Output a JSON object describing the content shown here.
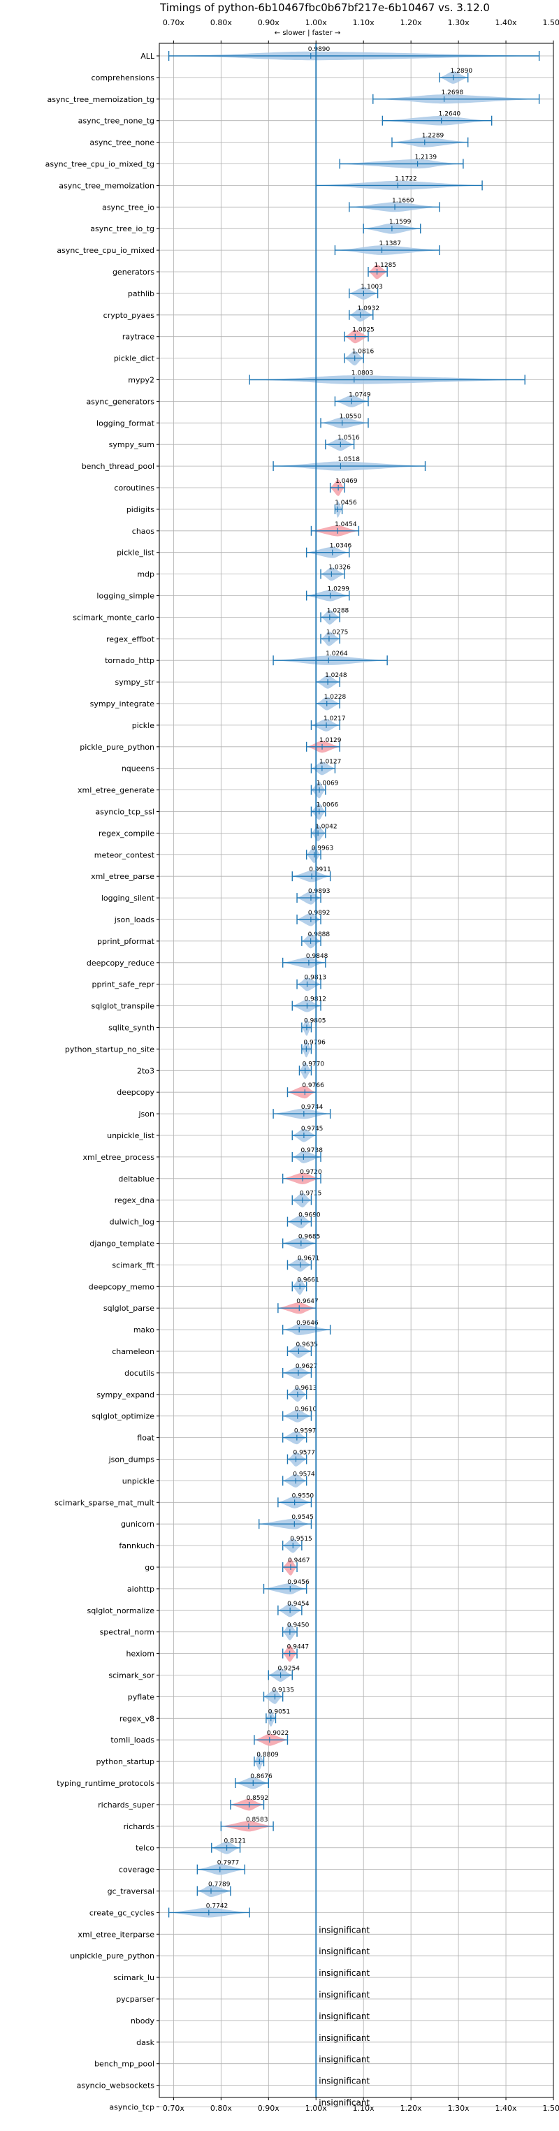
{
  "chart_data": {
    "type": "violin",
    "title": "Timings of python-6b10467fbc0b67bf217e-6b10467 vs. 3.12.0",
    "subtitle": "← slower | faster →",
    "xlim": [
      0.67,
      1.5
    ],
    "x_ticks": [
      0.7,
      0.8,
      0.9,
      1.0,
      1.1,
      1.2,
      1.3,
      1.4,
      1.5
    ],
    "x_tick_labels": [
      "0.70x",
      "0.80x",
      "0.90x",
      "1.00x",
      "1.10x",
      "1.20x",
      "1.30x",
      "1.40x",
      "1.50x"
    ],
    "reference_line": 1.0,
    "grid": true,
    "colors": {
      "fast": "#1f77b4",
      "slow": "#d62728",
      "line": "#1f77b4"
    },
    "insignificant_label": "insignificant",
    "benchmarks": [
      {
        "name": "ALL",
        "value": 0.989,
        "label": "0.9890",
        "min": 0.69,
        "max": 1.47,
        "slow": false
      },
      {
        "name": "comprehensions",
        "value": 1.289,
        "label": "1.2890",
        "min": 1.26,
        "max": 1.32,
        "slow": false
      },
      {
        "name": "async_tree_memoization_tg",
        "value": 1.2698,
        "label": "1.2698",
        "min": 1.12,
        "max": 1.47,
        "slow": false
      },
      {
        "name": "async_tree_none_tg",
        "value": 1.264,
        "label": "1.2640",
        "min": 1.14,
        "max": 1.37,
        "slow": false
      },
      {
        "name": "async_tree_none",
        "value": 1.2289,
        "label": "1.2289",
        "min": 1.16,
        "max": 1.32,
        "slow": false
      },
      {
        "name": "async_tree_cpu_io_mixed_tg",
        "value": 1.2139,
        "label": "1.2139",
        "min": 1.05,
        "max": 1.31,
        "slow": false
      },
      {
        "name": "async_tree_memoization",
        "value": 1.1722,
        "label": "1.1722",
        "min": 1.0,
        "max": 1.35,
        "slow": false
      },
      {
        "name": "async_tree_io",
        "value": 1.166,
        "label": "1.1660",
        "min": 1.07,
        "max": 1.26,
        "slow": false
      },
      {
        "name": "async_tree_io_tg",
        "value": 1.1599,
        "label": "1.1599",
        "min": 1.1,
        "max": 1.22,
        "slow": false
      },
      {
        "name": "async_tree_cpu_io_mixed",
        "value": 1.1387,
        "label": "1.1387",
        "min": 1.04,
        "max": 1.26,
        "slow": false
      },
      {
        "name": "generators",
        "value": 1.1285,
        "label": "1.1285",
        "min": 1.11,
        "max": 1.15,
        "slow": true
      },
      {
        "name": "pathlib",
        "value": 1.1003,
        "label": "1.1003",
        "min": 1.07,
        "max": 1.13,
        "slow": false
      },
      {
        "name": "crypto_pyaes",
        "value": 1.0932,
        "label": "1.0932",
        "min": 1.07,
        "max": 1.12,
        "slow": false
      },
      {
        "name": "raytrace",
        "value": 1.0825,
        "label": "1.0825",
        "min": 1.06,
        "max": 1.11,
        "slow": true
      },
      {
        "name": "pickle_dict",
        "value": 1.0816,
        "label": "1.0816",
        "min": 1.06,
        "max": 1.1,
        "slow": false
      },
      {
        "name": "mypy2",
        "value": 1.0803,
        "label": "1.0803",
        "min": 0.86,
        "max": 1.44,
        "slow": false
      },
      {
        "name": "async_generators",
        "value": 1.0749,
        "label": "1.0749",
        "min": 1.04,
        "max": 1.11,
        "slow": false
      },
      {
        "name": "logging_format",
        "value": 1.055,
        "label": "1.0550",
        "min": 1.01,
        "max": 1.11,
        "slow": false
      },
      {
        "name": "sympy_sum",
        "value": 1.0516,
        "label": "1.0516",
        "min": 1.02,
        "max": 1.08,
        "slow": false
      },
      {
        "name": "bench_thread_pool",
        "value": 1.0518,
        "label": "1.0518",
        "min": 0.91,
        "max": 1.23,
        "slow": false
      },
      {
        "name": "coroutines",
        "value": 1.0469,
        "label": "1.0469",
        "min": 1.03,
        "max": 1.06,
        "slow": true
      },
      {
        "name": "pidigits",
        "value": 1.0456,
        "label": "1.0456",
        "min": 1.04,
        "max": 1.055,
        "slow": false
      },
      {
        "name": "chaos",
        "value": 1.0454,
        "label": "1.0454",
        "min": 0.99,
        "max": 1.09,
        "slow": true
      },
      {
        "name": "pickle_list",
        "value": 1.0346,
        "label": "1.0346",
        "min": 0.98,
        "max": 1.07,
        "slow": false
      },
      {
        "name": "mdp",
        "value": 1.0326,
        "label": "1.0326",
        "min": 1.01,
        "max": 1.06,
        "slow": false
      },
      {
        "name": "logging_simple",
        "value": 1.0299,
        "label": "1.0299",
        "min": 0.98,
        "max": 1.07,
        "slow": false
      },
      {
        "name": "scimark_monte_carlo",
        "value": 1.0288,
        "label": "1.0288",
        "min": 1.01,
        "max": 1.05,
        "slow": false
      },
      {
        "name": "regex_effbot",
        "value": 1.0275,
        "label": "1.0275",
        "min": 1.01,
        "max": 1.05,
        "slow": false
      },
      {
        "name": "tornado_http",
        "value": 1.0264,
        "label": "1.0264",
        "min": 0.91,
        "max": 1.15,
        "slow": false
      },
      {
        "name": "sympy_str",
        "value": 1.0248,
        "label": "1.0248",
        "min": 1.0,
        "max": 1.05,
        "slow": false
      },
      {
        "name": "sympy_integrate",
        "value": 1.0228,
        "label": "1.0228",
        "min": 1.0,
        "max": 1.05,
        "slow": false
      },
      {
        "name": "pickle",
        "value": 1.0217,
        "label": "1.0217",
        "min": 0.99,
        "max": 1.05,
        "slow": false
      },
      {
        "name": "pickle_pure_python",
        "value": 1.0129,
        "label": "1.0129",
        "min": 0.98,
        "max": 1.05,
        "slow": true
      },
      {
        "name": "nqueens",
        "value": 1.0127,
        "label": "1.0127",
        "min": 0.99,
        "max": 1.04,
        "slow": false
      },
      {
        "name": "xml_etree_generate",
        "value": 1.0069,
        "label": "1.0069",
        "min": 0.99,
        "max": 1.02,
        "slow": false
      },
      {
        "name": "asyncio_tcp_ssl",
        "value": 1.0066,
        "label": "1.0066",
        "min": 0.99,
        "max": 1.02,
        "slow": false
      },
      {
        "name": "regex_compile",
        "value": 1.0042,
        "label": "1.0042",
        "min": 0.99,
        "max": 1.02,
        "slow": false
      },
      {
        "name": "meteor_contest",
        "value": 0.9963,
        "label": "0.9963",
        "min": 0.98,
        "max": 1.01,
        "slow": false
      },
      {
        "name": "xml_etree_parse",
        "value": 0.9911,
        "label": "0.9911",
        "min": 0.95,
        "max": 1.03,
        "slow": false
      },
      {
        "name": "logging_silent",
        "value": 0.9893,
        "label": "0.9893",
        "min": 0.96,
        "max": 1.01,
        "slow": false
      },
      {
        "name": "json_loads",
        "value": 0.9892,
        "label": "0.9892",
        "min": 0.96,
        "max": 1.01,
        "slow": false
      },
      {
        "name": "pprint_pformat",
        "value": 0.9888,
        "label": "0.9888",
        "min": 0.97,
        "max": 1.01,
        "slow": false
      },
      {
        "name": "deepcopy_reduce",
        "value": 0.9848,
        "label": "0.9848",
        "min": 0.93,
        "max": 1.02,
        "slow": false
      },
      {
        "name": "pprint_safe_repr",
        "value": 0.9813,
        "label": "0.9813",
        "min": 0.96,
        "max": 1.01,
        "slow": false
      },
      {
        "name": "sqlglot_transpile",
        "value": 0.9812,
        "label": "0.9812",
        "min": 0.95,
        "max": 1.01,
        "slow": false
      },
      {
        "name": "sqlite_synth",
        "value": 0.9805,
        "label": "0.9805",
        "min": 0.97,
        "max": 0.99,
        "slow": false
      },
      {
        "name": "python_startup_no_site",
        "value": 0.9796,
        "label": "0.9796",
        "min": 0.97,
        "max": 0.99,
        "slow": false
      },
      {
        "name": "2to3",
        "value": 0.977,
        "label": "0.9770",
        "min": 0.965,
        "max": 0.99,
        "slow": false
      },
      {
        "name": "deepcopy",
        "value": 0.9766,
        "label": "0.9766",
        "min": 0.94,
        "max": 1.0,
        "slow": true
      },
      {
        "name": "json",
        "value": 0.9744,
        "label": "0.9744",
        "min": 0.91,
        "max": 1.03,
        "slow": false
      },
      {
        "name": "unpickle_list",
        "value": 0.9745,
        "label": "0.9745",
        "min": 0.95,
        "max": 1.0,
        "slow": false
      },
      {
        "name": "xml_etree_process",
        "value": 0.9738,
        "label": "0.9738",
        "min": 0.95,
        "max": 1.01,
        "slow": false
      },
      {
        "name": "deltablue",
        "value": 0.972,
        "label": "0.9720",
        "min": 0.93,
        "max": 1.01,
        "slow": true
      },
      {
        "name": "regex_dna",
        "value": 0.9715,
        "label": "0.9715",
        "min": 0.95,
        "max": 0.99,
        "slow": false
      },
      {
        "name": "dulwich_log",
        "value": 0.969,
        "label": "0.9690",
        "min": 0.94,
        "max": 0.99,
        "slow": false
      },
      {
        "name": "django_template",
        "value": 0.9685,
        "label": "0.9685",
        "min": 0.93,
        "max": 1.0,
        "slow": false
      },
      {
        "name": "scimark_fft",
        "value": 0.9671,
        "label": "0.9671",
        "min": 0.94,
        "max": 0.99,
        "slow": false
      },
      {
        "name": "deepcopy_memo",
        "value": 0.9661,
        "label": "0.9661",
        "min": 0.95,
        "max": 0.98,
        "slow": false
      },
      {
        "name": "sqlglot_parse",
        "value": 0.9647,
        "label": "0.9647",
        "min": 0.92,
        "max": 1.0,
        "slow": true
      },
      {
        "name": "mako",
        "value": 0.9646,
        "label": "0.9646",
        "min": 0.93,
        "max": 1.03,
        "slow": false
      },
      {
        "name": "chameleon",
        "value": 0.9635,
        "label": "0.9635",
        "min": 0.94,
        "max": 0.99,
        "slow": false
      },
      {
        "name": "docutils",
        "value": 0.9627,
        "label": "0.9627",
        "min": 0.93,
        "max": 0.99,
        "slow": false
      },
      {
        "name": "sympy_expand",
        "value": 0.9613,
        "label": "0.9613",
        "min": 0.94,
        "max": 0.98,
        "slow": false
      },
      {
        "name": "sqlglot_optimize",
        "value": 0.961,
        "label": "0.9610",
        "min": 0.93,
        "max": 0.99,
        "slow": false
      },
      {
        "name": "float",
        "value": 0.9597,
        "label": "0.9597",
        "min": 0.93,
        "max": 0.98,
        "slow": false
      },
      {
        "name": "json_dumps",
        "value": 0.9577,
        "label": "0.9577",
        "min": 0.94,
        "max": 0.98,
        "slow": false
      },
      {
        "name": "unpickle",
        "value": 0.9574,
        "label": "0.9574",
        "min": 0.93,
        "max": 0.98,
        "slow": false
      },
      {
        "name": "scimark_sparse_mat_mult",
        "value": 0.955,
        "label": "0.9550",
        "min": 0.92,
        "max": 0.99,
        "slow": false
      },
      {
        "name": "gunicorn",
        "value": 0.9545,
        "label": "0.9545",
        "min": 0.88,
        "max": 0.99,
        "slow": false
      },
      {
        "name": "fannkuch",
        "value": 0.9515,
        "label": "0.9515",
        "min": 0.93,
        "max": 0.97,
        "slow": false
      },
      {
        "name": "go",
        "value": 0.9467,
        "label": "0.9467",
        "min": 0.93,
        "max": 0.96,
        "slow": true
      },
      {
        "name": "aiohttp",
        "value": 0.9456,
        "label": "0.9456",
        "min": 0.89,
        "max": 0.98,
        "slow": false
      },
      {
        "name": "sqlglot_normalize",
        "value": 0.9454,
        "label": "0.9454",
        "min": 0.92,
        "max": 0.97,
        "slow": false
      },
      {
        "name": "spectral_norm",
        "value": 0.945,
        "label": "0.9450",
        "min": 0.93,
        "max": 0.96,
        "slow": false
      },
      {
        "name": "hexiom",
        "value": 0.9447,
        "label": "0.9447",
        "min": 0.93,
        "max": 0.96,
        "slow": true
      },
      {
        "name": "scimark_sor",
        "value": 0.9254,
        "label": "0.9254",
        "min": 0.9,
        "max": 0.95,
        "slow": false
      },
      {
        "name": "pyflate",
        "value": 0.9135,
        "label": "0.9135",
        "min": 0.89,
        "max": 0.93,
        "slow": false
      },
      {
        "name": "regex_v8",
        "value": 0.9051,
        "label": "0.9051",
        "min": 0.895,
        "max": 0.915,
        "slow": false
      },
      {
        "name": "tomli_loads",
        "value": 0.9022,
        "label": "0.9022",
        "min": 0.87,
        "max": 0.94,
        "slow": true
      },
      {
        "name": "python_startup",
        "value": 0.8809,
        "label": "0.8809",
        "min": 0.87,
        "max": 0.89,
        "slow": false
      },
      {
        "name": "typing_runtime_protocols",
        "value": 0.8676,
        "label": "0.8676",
        "min": 0.83,
        "max": 0.9,
        "slow": false
      },
      {
        "name": "richards_super",
        "value": 0.8592,
        "label": "0.8592",
        "min": 0.82,
        "max": 0.89,
        "slow": true
      },
      {
        "name": "richards",
        "value": 0.8583,
        "label": "0.8583",
        "min": 0.8,
        "max": 0.91,
        "slow": true
      },
      {
        "name": "telco",
        "value": 0.8121,
        "label": "0.8121",
        "min": 0.78,
        "max": 0.84,
        "slow": false
      },
      {
        "name": "coverage",
        "value": 0.7977,
        "label": "0.7977",
        "min": 0.75,
        "max": 0.85,
        "slow": false
      },
      {
        "name": "gc_traversal",
        "value": 0.7789,
        "label": "0.7789",
        "min": 0.75,
        "max": 0.82,
        "slow": false
      },
      {
        "name": "create_gc_cycles",
        "value": 0.7742,
        "label": "0.7742",
        "min": 0.69,
        "max": 0.86,
        "slow": false
      },
      {
        "name": "xml_etree_iterparse",
        "insignificant": true
      },
      {
        "name": "unpickle_pure_python",
        "insignificant": true
      },
      {
        "name": "scimark_lu",
        "insignificant": true
      },
      {
        "name": "pycparser",
        "insignificant": true
      },
      {
        "name": "nbody",
        "insignificant": true
      },
      {
        "name": "dask",
        "insignificant": true
      },
      {
        "name": "bench_mp_pool",
        "insignificant": true
      },
      {
        "name": "asyncio_websockets",
        "insignificant": true
      },
      {
        "name": "asyncio_tcp",
        "insignificant": true
      }
    ]
  }
}
